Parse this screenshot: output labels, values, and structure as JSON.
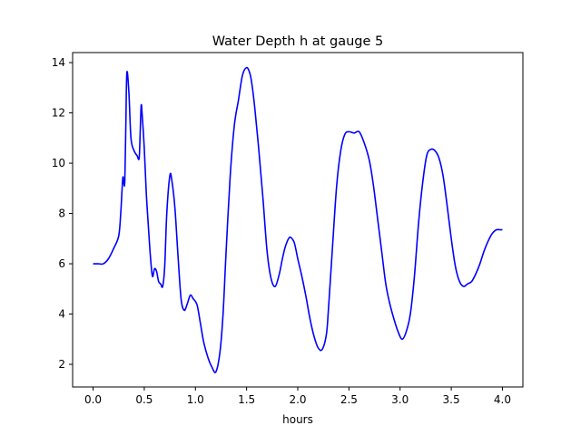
{
  "chart_data": {
    "type": "line",
    "title": "Water Depth h at gauge 5",
    "xlabel": "hours",
    "ylabel": "",
    "xlim": [
      -0.2,
      4.2
    ],
    "ylim": [
      1.1,
      14.4
    ],
    "xticks": [
      0.0,
      0.5,
      1.0,
      1.5,
      2.0,
      2.5,
      3.0,
      3.5,
      4.0
    ],
    "xtick_labels": [
      "0.0",
      "0.5",
      "1.0",
      "1.5",
      "2.0",
      "2.5",
      "3.0",
      "3.5",
      "4.0"
    ],
    "yticks": [
      2,
      4,
      6,
      8,
      10,
      12,
      14
    ],
    "ytick_labels": [
      "2",
      "4",
      "6",
      "8",
      "10",
      "12",
      "14"
    ],
    "grid": false,
    "series": [
      {
        "color": "#0000ff",
        "x": [
          0.0,
          0.05,
          0.1,
          0.15,
          0.2,
          0.25,
          0.27,
          0.29,
          0.3,
          0.31,
          0.32,
          0.33,
          0.35,
          0.37,
          0.4,
          0.43,
          0.45,
          0.46,
          0.47,
          0.48,
          0.5,
          0.52,
          0.54,
          0.56,
          0.58,
          0.6,
          0.62,
          0.64,
          0.66,
          0.68,
          0.7,
          0.72,
          0.75,
          0.77,
          0.8,
          0.83,
          0.86,
          0.89,
          0.92,
          0.95,
          0.98,
          1.0,
          1.02,
          1.05,
          1.08,
          1.12,
          1.16,
          1.2,
          1.24,
          1.27,
          1.3,
          1.34,
          1.38,
          1.42,
          1.46,
          1.5,
          1.53,
          1.55,
          1.58,
          1.62,
          1.66,
          1.7,
          1.74,
          1.78,
          1.82,
          1.85,
          1.88,
          1.92,
          1.96,
          1.98,
          2.0,
          2.04,
          2.08,
          2.12,
          2.16,
          2.2,
          2.24,
          2.28,
          2.3,
          2.34,
          2.38,
          2.42,
          2.46,
          2.5,
          2.55,
          2.6,
          2.65,
          2.7,
          2.74,
          2.78,
          2.82,
          2.86,
          2.9,
          2.94,
          2.98,
          3.02,
          3.06,
          3.1,
          3.14,
          3.18,
          3.22,
          3.26,
          3.3,
          3.34,
          3.38,
          3.42,
          3.46,
          3.5,
          3.54,
          3.58,
          3.62,
          3.66,
          3.7,
          3.74,
          3.78,
          3.82,
          3.86,
          3.9,
          3.94,
          3.98,
          4.0
        ],
        "y": [
          6.0,
          6.0,
          6.0,
          6.2,
          6.6,
          7.1,
          8.0,
          9.4,
          9.2,
          9.3,
          11.5,
          13.6,
          12.8,
          11.0,
          10.5,
          10.3,
          10.2,
          11.2,
          12.3,
          11.9,
          10.6,
          8.8,
          7.5,
          6.3,
          5.5,
          5.8,
          5.7,
          5.3,
          5.2,
          5.1,
          5.9,
          8.0,
          9.5,
          9.3,
          8.2,
          6.3,
          4.6,
          4.15,
          4.4,
          4.75,
          4.6,
          4.5,
          4.3,
          3.6,
          2.9,
          2.3,
          1.9,
          1.7,
          2.5,
          4.0,
          6.5,
          9.5,
          11.5,
          12.5,
          13.5,
          13.8,
          13.6,
          13.2,
          12.2,
          10.5,
          8.6,
          6.5,
          5.4,
          5.1,
          5.6,
          6.2,
          6.7,
          7.05,
          6.9,
          6.6,
          6.2,
          5.5,
          4.7,
          3.8,
          3.1,
          2.65,
          2.6,
          3.2,
          4.2,
          6.7,
          9.1,
          10.5,
          11.15,
          11.25,
          11.2,
          11.25,
          10.8,
          10.1,
          9.1,
          7.8,
          6.5,
          5.2,
          4.4,
          3.8,
          3.3,
          3.0,
          3.3,
          4.0,
          5.5,
          7.6,
          9.2,
          10.3,
          10.55,
          10.5,
          10.2,
          9.5,
          8.3,
          7.0,
          5.9,
          5.3,
          5.1,
          5.2,
          5.3,
          5.6,
          6.0,
          6.5,
          6.9,
          7.2,
          7.35,
          7.35,
          7.35
        ]
      }
    ]
  }
}
